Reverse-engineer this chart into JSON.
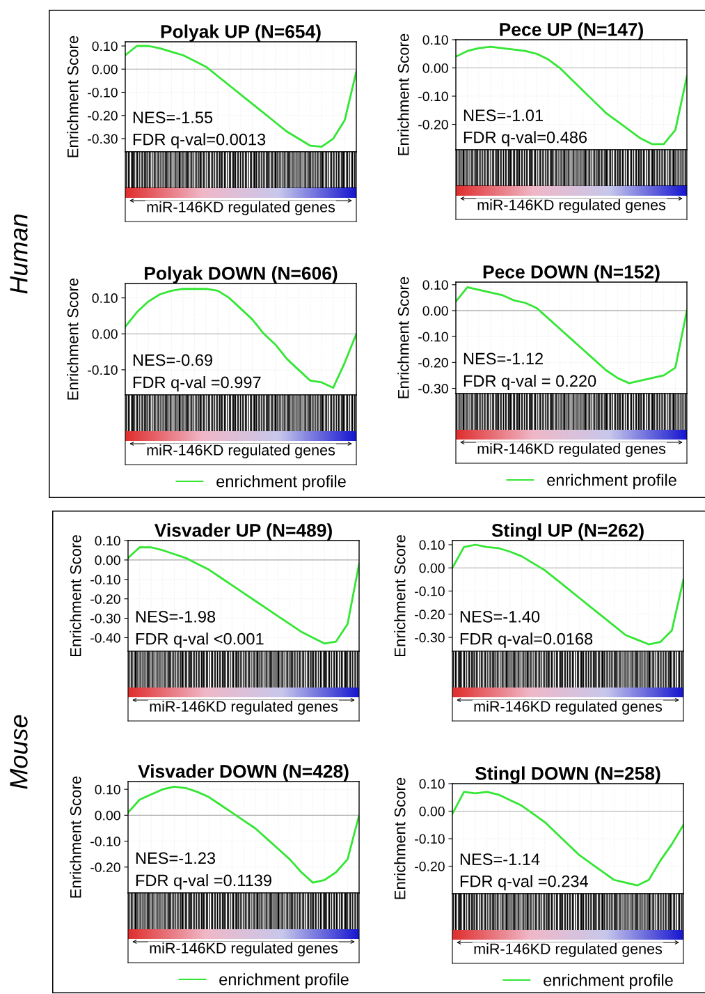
{
  "chart_data": [
    {
      "type": "line",
      "title": "Polyak UP (N=654)",
      "ylabel": "Enrichment Score",
      "xlabel": "miR-146KD regulated genes",
      "tick_labels": "y",
      "grid": true,
      "categories": [
        null,
        null,
        null,
        null,
        null,
        null,
        null,
        null,
        null,
        null,
        null,
        null,
        null,
        null,
        null,
        null,
        null,
        null,
        null,
        null,
        null
      ],
      "series": [
        {
          "color": "#33e633",
          "values": [
            0.06,
            0.1,
            0.1,
            0.09,
            0.075,
            0.06,
            0.035,
            0.01,
            -0.03,
            -0.07,
            -0.11,
            -0.15,
            -0.19,
            -0.23,
            -0.27,
            -0.3,
            -0.33,
            -0.335,
            -0.3,
            -0.22,
            -0.01
          ]
        }
      ],
      "ylim": [
        -0.357,
        0.118
      ],
      "yticks": [
        {
          "value": 0.1,
          "label": "0.10"
        },
        {
          "value": 0,
          "label": "0.00"
        },
        {
          "value": -0.1,
          "label": "-0.10"
        },
        {
          "value": -0.2,
          "label": "-0.20"
        },
        {
          "value": -0.3,
          "label": "-0.30"
        }
      ],
      "ref_lines": [
        {
          "axis": "y",
          "value": 0,
          "color": "#aaaaaa"
        }
      ],
      "annotations": [
        "NES=-1.55",
        "FDR q-val=0.0013",
        "Human"
      ]
    },
    {
      "type": "line",
      "title": "Pece UP (N=147)",
      "ylabel": "Enrichment Score",
      "xlabel": "miR-146KD regulated genes",
      "tick_labels": "y",
      "grid": true,
      "categories": [
        null,
        null,
        null,
        null,
        null,
        null,
        null,
        null,
        null,
        null,
        null,
        null,
        null,
        null,
        null,
        null,
        null,
        null,
        null,
        null,
        null
      ],
      "series": [
        {
          "color": "#33e633",
          "values": [
            0.04,
            0.06,
            0.07,
            0.075,
            0.07,
            0.065,
            0.06,
            0.05,
            0.03,
            0.0,
            -0.04,
            -0.08,
            -0.12,
            -0.16,
            -0.19,
            -0.22,
            -0.25,
            -0.27,
            -0.27,
            -0.22,
            -0.03
          ]
        }
      ],
      "ylim": [
        -0.29,
        0.1
      ],
      "yticks": [
        {
          "value": 0.1,
          "label": "0.10"
        },
        {
          "value": 0,
          "label": "0.00"
        },
        {
          "value": -0.1,
          "label": "-0.10"
        },
        {
          "value": -0.2,
          "label": "-0.20"
        }
      ],
      "ref_lines": [
        {
          "axis": "y",
          "value": 0,
          "color": "#aaaaaa"
        }
      ],
      "annotations": [
        "NES=-1.01",
        "FDR q-val=0.486"
      ]
    },
    {
      "type": "line",
      "title": "Polyak DOWN (N=606)",
      "ylabel": "Enrichment Score",
      "xlabel": "miR-146KD regulated genes",
      "tick_labels": "y",
      "grid": true,
      "legend": "bottom",
      "categories": [
        null,
        null,
        null,
        null,
        null,
        null,
        null,
        null,
        null,
        null,
        null,
        null,
        null,
        null,
        null,
        null,
        null,
        null,
        null,
        null,
        null
      ],
      "series": [
        {
          "name": "enrichment profile",
          "color": "#33e633",
          "values": [
            0.02,
            0.06,
            0.09,
            0.11,
            0.12,
            0.125,
            0.125,
            0.125,
            0.12,
            0.1,
            0.07,
            0.04,
            0.0,
            -0.03,
            -0.07,
            -0.1,
            -0.13,
            -0.135,
            -0.15,
            -0.08,
            0.0
          ]
        }
      ],
      "ylim": [
        -0.17,
        0.14
      ],
      "yticks": [
        {
          "value": 0.1,
          "label": "0.10"
        },
        {
          "value": 0,
          "label": "0.00"
        },
        {
          "value": -0.1,
          "label": "-0.10"
        }
      ],
      "ref_lines": [
        {
          "axis": "y",
          "value": 0,
          "color": "#aaaaaa"
        }
      ],
      "annotations": [
        "NES=-0.69",
        "FDR q-val =0.997"
      ]
    },
    {
      "type": "line",
      "title": "Pece DOWN (N=152)",
      "ylabel": "Enrichment Score",
      "xlabel": "miR-146KD regulated genes",
      "tick_labels": "y",
      "grid": true,
      "legend": "bottom",
      "categories": [
        null,
        null,
        null,
        null,
        null,
        null,
        null,
        null,
        null,
        null,
        null,
        null,
        null,
        null,
        null,
        null,
        null,
        null,
        null,
        null,
        null
      ],
      "series": [
        {
          "name": "enrichment profile",
          "color": "#33e633",
          "values": [
            0.035,
            0.09,
            0.08,
            0.07,
            0.06,
            0.04,
            0.03,
            0.01,
            -0.03,
            -0.07,
            -0.11,
            -0.15,
            -0.19,
            -0.23,
            -0.26,
            -0.28,
            -0.27,
            -0.26,
            -0.25,
            -0.22,
            0.0
          ]
        }
      ],
      "ylim": [
        -0.32,
        0.11
      ],
      "yticks": [
        {
          "value": 0.1,
          "label": "0.10"
        },
        {
          "value": 0,
          "label": "0.00"
        },
        {
          "value": -0.1,
          "label": "-0.10"
        },
        {
          "value": -0.2,
          "label": "-0.20"
        },
        {
          "value": -0.3,
          "label": "-0.30"
        }
      ],
      "ref_lines": [
        {
          "axis": "y",
          "value": 0,
          "color": "#aaaaaa"
        }
      ],
      "annotations": [
        "NES=-1.12",
        "FDR q-val = 0.220"
      ]
    },
    {
      "type": "line",
      "title": "Visvader UP (N=489)",
      "ylabel": "Enrichment Score",
      "xlabel": "miR-146KD regulated genes",
      "tick_labels": "y",
      "grid": true,
      "categories": [
        null,
        null,
        null,
        null,
        null,
        null,
        null,
        null,
        null,
        null,
        null,
        null,
        null,
        null,
        null,
        null,
        null,
        null,
        null,
        null,
        null
      ],
      "series": [
        {
          "color": "#33e633",
          "values": [
            0.01,
            0.065,
            0.065,
            0.05,
            0.03,
            0.01,
            -0.02,
            -0.05,
            -0.09,
            -0.13,
            -0.17,
            -0.21,
            -0.25,
            -0.29,
            -0.33,
            -0.37,
            -0.4,
            -0.43,
            -0.42,
            -0.33,
            -0.02
          ]
        }
      ],
      "ylim": [
        -0.47,
        0.1
      ],
      "yticks": [
        {
          "value": 0.1,
          "label": "0.10"
        },
        {
          "value": 0,
          "label": "0.00"
        },
        {
          "value": -0.1,
          "label": "-0.10"
        },
        {
          "value": -0.2,
          "label": "-0.20"
        },
        {
          "value": -0.3,
          "label": "-0.30"
        },
        {
          "value": -0.4,
          "label": "-0.40"
        }
      ],
      "ref_lines": [
        {
          "axis": "y",
          "value": 0,
          "color": "#aaaaaa"
        }
      ],
      "annotations": [
        "NES=-1.98",
        "FDR q-val <0.001",
        "Mouse"
      ]
    },
    {
      "type": "line",
      "title": "Stingl UP (N=262)",
      "ylabel": "Enrichment Score",
      "xlabel": "miR-146KD regulated genes",
      "tick_labels": "y",
      "grid": true,
      "categories": [
        null,
        null,
        null,
        null,
        null,
        null,
        null,
        null,
        null,
        null,
        null,
        null,
        null,
        null,
        null,
        null,
        null,
        null,
        null,
        null,
        null
      ],
      "series": [
        {
          "color": "#33e633",
          "values": [
            0.0,
            0.09,
            0.1,
            0.09,
            0.085,
            0.07,
            0.05,
            0.02,
            -0.01,
            -0.05,
            -0.09,
            -0.13,
            -0.17,
            -0.21,
            -0.25,
            -0.29,
            -0.31,
            -0.33,
            -0.32,
            -0.27,
            -0.05
          ]
        }
      ],
      "ylim": [
        -0.36,
        0.118
      ],
      "yticks": [
        {
          "value": 0.1,
          "label": "0.10"
        },
        {
          "value": 0,
          "label": "0.00"
        },
        {
          "value": -0.1,
          "label": "-0.10"
        },
        {
          "value": -0.2,
          "label": "-0.20"
        },
        {
          "value": -0.3,
          "label": "-0.30"
        }
      ],
      "ref_lines": [
        {
          "axis": "y",
          "value": 0,
          "color": "#aaaaaa"
        }
      ],
      "annotations": [
        "NES=-1.40",
        "FDR q-val=0.0168"
      ]
    },
    {
      "type": "line",
      "title": "Visvader DOWN (N=428)",
      "ylabel": "Enrichment Score",
      "xlabel": "miR-146KD regulated genes",
      "tick_labels": "y",
      "grid": true,
      "legend": "bottom",
      "categories": [
        null,
        null,
        null,
        null,
        null,
        null,
        null,
        null,
        null,
        null,
        null,
        null,
        null,
        null,
        null,
        null,
        null,
        null,
        null,
        null,
        null
      ],
      "series": [
        {
          "name": "enrichment profile",
          "color": "#33e633",
          "values": [
            0.01,
            0.06,
            0.08,
            0.1,
            0.11,
            0.105,
            0.09,
            0.07,
            0.04,
            0.01,
            -0.02,
            -0.05,
            -0.09,
            -0.13,
            -0.17,
            -0.22,
            -0.26,
            -0.25,
            -0.22,
            -0.17,
            0.0
          ]
        }
      ],
      "ylim": [
        -0.3,
        0.13
      ],
      "yticks": [
        {
          "value": 0.1,
          "label": "0.10"
        },
        {
          "value": 0,
          "label": "0.00"
        },
        {
          "value": -0.1,
          "label": "-0.10"
        },
        {
          "value": -0.2,
          "label": "-0.20"
        }
      ],
      "ref_lines": [
        {
          "axis": "y",
          "value": 0,
          "color": "#aaaaaa"
        }
      ],
      "annotations": [
        "NES=-1.23",
        "FDR q-val =0.1139"
      ]
    },
    {
      "type": "line",
      "title": "Stingl DOWN (N=258)",
      "ylabel": "Enrichment Score",
      "xlabel": "miR-146KD regulated genes",
      "tick_labels": "y",
      "grid": true,
      "legend": "bottom",
      "categories": [
        null,
        null,
        null,
        null,
        null,
        null,
        null,
        null,
        null,
        null,
        null,
        null,
        null,
        null,
        null,
        null,
        null,
        null,
        null,
        null,
        null
      ],
      "series": [
        {
          "name": "enrichment profile",
          "color": "#33e633",
          "values": [
            -0.01,
            0.07,
            0.065,
            0.07,
            0.06,
            0.04,
            0.02,
            -0.01,
            -0.04,
            -0.08,
            -0.12,
            -0.16,
            -0.19,
            -0.22,
            -0.25,
            -0.26,
            -0.27,
            -0.25,
            -0.18,
            -0.12,
            -0.05
          ]
        }
      ],
      "ylim": [
        -0.3,
        0.1
      ],
      "yticks": [
        {
          "value": 0.1,
          "label": "0.10"
        },
        {
          "value": 0,
          "label": "0.00"
        },
        {
          "value": -0.1,
          "label": "-0.10"
        },
        {
          "value": -0.2,
          "label": "-0.20"
        }
      ],
      "ref_lines": [
        {
          "axis": "y",
          "value": 0,
          "color": "#aaaaaa"
        }
      ],
      "annotations": [
        "NES=-1.14",
        "FDR q-val =0.234"
      ]
    }
  ]
}
